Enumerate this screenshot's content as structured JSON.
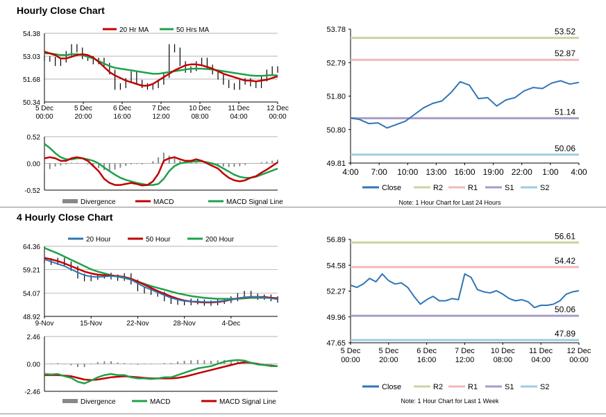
{
  "sections": {
    "hourly_title": "Hourly Close Chart",
    "four_hourly_title": "4 Hourly Close Chart"
  },
  "colors": {
    "red": "#C00000",
    "green": "#1FA04A",
    "blue": "#2E75B6",
    "bar": "#888888",
    "r2": "#C8D6A0",
    "r1": "#F2B7B7",
    "s1": "#A99BC9",
    "s2": "#9CCDE0",
    "close": "#2F75B5"
  },
  "chart_data": [
    {
      "id": "hourly_price",
      "type": "candlestick+line",
      "legend": [
        "20 Hr MA",
        "50 Hrs MA"
      ],
      "yticks": [
        "54.38",
        "53.03",
        "51.68",
        "50.34"
      ],
      "ylim": [
        50.34,
        54.38
      ],
      "xticks": [
        "5 Dec\n00:00",
        "5 Dec\n20:00",
        "6 Dec\n16:00",
        "7 Dec\n12:00",
        "10 Dec\n08:00",
        "11 Dec\n04:00",
        "12 Dec\n00:00"
      ],
      "close": [
        52.9,
        52.85,
        52.6,
        52.8,
        53.2,
        53.6,
        53.4,
        53.0,
        52.9,
        52.7,
        52.8,
        52.5,
        52.1,
        51.2,
        51.3,
        51.6,
        52.0,
        51.5,
        51.3,
        51.2,
        51.3,
        51.5,
        51.9,
        53.6,
        53.4,
        52.6,
        52.2,
        52.3,
        52.6,
        52.8,
        52.4,
        52.1,
        51.8,
        51.5,
        51.3,
        51.2,
        51.5,
        51.6,
        51.4,
        51.3,
        51.7,
        52.1,
        52.3,
        52.2
      ],
      "ma20": [
        53.3,
        53.2,
        53.1,
        52.9,
        52.9,
        53.0,
        53.1,
        53.15,
        53.1,
        52.95,
        52.7,
        52.4,
        52.1,
        51.9,
        51.75,
        51.6,
        51.5,
        51.4,
        51.3,
        51.3,
        51.4,
        51.6,
        51.8,
        52.0,
        52.2,
        52.35,
        52.5,
        52.55,
        52.55,
        52.5,
        52.4,
        52.3,
        52.15,
        52.0,
        51.9,
        51.8,
        51.7,
        51.6,
        51.6,
        51.55,
        51.6,
        51.65,
        51.75,
        51.85
      ],
      "ma50": [
        53.2,
        53.2,
        53.15,
        53.1,
        53.1,
        53.15,
        53.15,
        53.1,
        53.0,
        52.9,
        52.75,
        52.6,
        52.45,
        52.35,
        52.3,
        52.25,
        52.2,
        52.15,
        52.1,
        52.05,
        52.0,
        52.0,
        52.05,
        52.1,
        52.15,
        52.2,
        52.25,
        52.3,
        52.3,
        52.3,
        52.28,
        52.25,
        52.2,
        52.15,
        52.1,
        52.05,
        52.0,
        51.95,
        51.9,
        51.88,
        51.88,
        51.9,
        51.92,
        51.9
      ]
    },
    {
      "id": "hourly_macd",
      "type": "bar+line",
      "legend": [
        "Divergence",
        "MACD",
        "MACD Signal Line"
      ],
      "yticks": [
        "0.52",
        "0.00",
        "-0.52"
      ],
      "ylim": [
        -0.52,
        0.52
      ],
      "macd": [
        0.1,
        0.12,
        0.1,
        0.05,
        0.05,
        0.1,
        0.12,
        0.1,
        0.05,
        -0.05,
        -0.15,
        -0.3,
        -0.38,
        -0.42,
        -0.42,
        -0.4,
        -0.38,
        -0.4,
        -0.43,
        -0.42,
        -0.35,
        -0.2,
        0.05,
        0.1,
        0.12,
        0.08,
        0.05,
        0.05,
        0.08,
        0.05,
        0.0,
        -0.05,
        -0.1,
        -0.2,
        -0.28,
        -0.33,
        -0.35,
        -0.33,
        -0.28,
        -0.25,
        -0.18,
        -0.12,
        -0.05,
        0.02
      ],
      "signal": [
        0.38,
        0.3,
        0.2,
        0.12,
        0.08,
        0.08,
        0.1,
        0.1,
        0.08,
        0.05,
        -0.0,
        -0.08,
        -0.15,
        -0.22,
        -0.28,
        -0.32,
        -0.35,
        -0.38,
        -0.4,
        -0.42,
        -0.42,
        -0.4,
        -0.3,
        -0.15,
        -0.05,
        0.0,
        0.02,
        0.03,
        0.04,
        0.04,
        0.02,
        -0.0,
        -0.04,
        -0.1,
        -0.16,
        -0.22,
        -0.26,
        -0.28,
        -0.28,
        -0.26,
        -0.22,
        -0.18,
        -0.14,
        -0.1
      ]
    },
    {
      "id": "hourly_pivots",
      "type": "line",
      "yticks": [
        "53.78",
        "52.79",
        "51.80",
        "50.80",
        "49.81"
      ],
      "ylim": [
        49.81,
        53.78
      ],
      "xticks": [
        "4:00",
        "7:00",
        "10:00",
        "13:00",
        "16:00",
        "19:00",
        "22:00",
        "1:00",
        "4:00"
      ],
      "levels": [
        {
          "name": "R2",
          "value": 53.52,
          "label": "53.52"
        },
        {
          "name": "R1",
          "value": 52.87,
          "label": "52.87"
        },
        {
          "name": "S1",
          "value": 51.14,
          "label": "51.14"
        },
        {
          "name": "S2",
          "value": 50.06,
          "label": "50.06"
        }
      ],
      "close": [
        51.15,
        51.1,
        50.98,
        51.0,
        50.85,
        50.95,
        51.05,
        51.25,
        51.45,
        51.58,
        51.65,
        51.9,
        52.22,
        52.12,
        51.72,
        51.75,
        51.5,
        51.68,
        51.75,
        51.95,
        52.05,
        52.02,
        52.18,
        52.25,
        52.15,
        52.2
      ],
      "legend": [
        "Close",
        "R2",
        "R1",
        "S1",
        "S2"
      ],
      "note": "Note: 1 Hour Chart for Last 24 Hours"
    },
    {
      "id": "four_hourly_price",
      "type": "candlestick+line",
      "legend": [
        "20 Hour",
        "50 Hour",
        "200 Hour"
      ],
      "yticks": [
        "64.36",
        "59.21",
        "54.07",
        "48.92"
      ],
      "ylim": [
        48.92,
        64.36
      ],
      "xticks": [
        "9-Nov",
        "15-Nov",
        "22-Nov",
        "28-Nov",
        "4-Dec"
      ],
      "close": [
        61.2,
        60.8,
        61.3,
        60.5,
        59.5,
        57.8,
        57.2,
        57.5,
        57.8,
        58.0,
        57.6,
        57.3,
        57.9,
        56.5,
        55.0,
        54.5,
        54.2,
        53.8,
        52.8,
        52.2,
        52.0,
        51.9,
        52.3,
        52.1,
        51.8,
        51.9,
        52.2,
        52.4,
        52.8,
        53.5,
        54.0,
        53.4,
        53.1,
        53.2,
        52.8,
        52.5
      ],
      "ma20": [
        61.5,
        61.0,
        60.5,
        60.0,
        59.3,
        58.6,
        58.0,
        57.7,
        57.6,
        57.7,
        57.8,
        57.7,
        57.5,
        57.0,
        56.2,
        55.4,
        54.8,
        54.2,
        53.6,
        53.0,
        52.6,
        52.3,
        52.2,
        52.2,
        52.1,
        52.1,
        52.2,
        52.4,
        52.6,
        52.9,
        53.1,
        53.2,
        53.2,
        53.1,
        52.9,
        52.7
      ],
      "ma50": [
        61.8,
        61.5,
        61.1,
        60.6,
        60.0,
        59.4,
        58.8,
        58.4,
        58.1,
        58.0,
        57.9,
        57.8,
        57.6,
        57.2,
        56.6,
        55.9,
        55.2,
        54.5,
        53.9,
        53.3,
        52.8,
        52.4,
        52.2,
        52.1,
        52.0,
        52.0,
        52.1,
        52.3,
        52.6,
        52.9,
        53.1,
        53.2,
        53.2,
        53.2,
        53.0,
        52.9
      ],
      "ma200": [
        64.0,
        63.4,
        62.8,
        62.1,
        61.4,
        60.7,
        60.0,
        59.3,
        58.8,
        58.4,
        58.0,
        57.7,
        57.4,
        57.0,
        56.6,
        56.1,
        55.6,
        55.2,
        54.8,
        54.4,
        54.0,
        53.7,
        53.4,
        53.2,
        53.0,
        52.9,
        52.8,
        52.8,
        52.8,
        52.8,
        52.9,
        53.0,
        53.0,
        53.0,
        53.0,
        52.9
      ]
    },
    {
      "id": "four_hourly_macd",
      "type": "bar+line",
      "legend": [
        "Divergence",
        "MACD",
        "MACD Signal Line"
      ],
      "yticks": [
        "2.46",
        "0.00",
        "-2.46"
      ],
      "ylim": [
        -2.46,
        2.46
      ],
      "macd": [
        -0.9,
        -0.95,
        -0.9,
        -1.1,
        -1.25,
        -1.6,
        -1.75,
        -1.5,
        -1.2,
        -1.0,
        -0.9,
        -1.0,
        -1.0,
        -1.2,
        -1.3,
        -1.3,
        -1.35,
        -1.3,
        -1.2,
        -1.2,
        -1.0,
        -0.8,
        -0.6,
        -0.4,
        -0.3,
        -0.2,
        0.0,
        0.2,
        0.3,
        0.35,
        0.3,
        0.1,
        -0.05,
        -0.1,
        -0.2,
        -0.2
      ],
      "signal": [
        -1.0,
        -1.0,
        -1.0,
        -1.05,
        -1.1,
        -1.25,
        -1.4,
        -1.45,
        -1.4,
        -1.3,
        -1.2,
        -1.15,
        -1.1,
        -1.15,
        -1.2,
        -1.25,
        -1.3,
        -1.3,
        -1.3,
        -1.3,
        -1.25,
        -1.15,
        -1.0,
        -0.85,
        -0.7,
        -0.55,
        -0.4,
        -0.25,
        -0.1,
        0.05,
        0.15,
        0.1,
        0.0,
        -0.1,
        -0.15,
        -0.2
      ]
    },
    {
      "id": "weekly_pivots",
      "type": "line",
      "yticks": [
        "56.89",
        "54.58",
        "52.27",
        "49.96",
        "47.65"
      ],
      "ylim": [
        47.65,
        56.89
      ],
      "xticks": [
        "5 Dec\n00:00",
        "5 Dec\n20:00",
        "6 Dec\n16:00",
        "7 Dec\n12:00",
        "10 Dec\n08:00",
        "11 Dec\n04:00",
        "12 Dec\n00:00"
      ],
      "levels": [
        {
          "name": "R2",
          "value": 56.61,
          "label": "56.61"
        },
        {
          "name": "R1",
          "value": 54.42,
          "label": "54.42"
        },
        {
          "name": "S1",
          "value": 50.06,
          "label": "50.06"
        },
        {
          "name": "S2",
          "value": 47.89,
          "label": "47.89"
        }
      ],
      "close": [
        52.8,
        52.6,
        52.9,
        53.4,
        53.1,
        53.8,
        53.2,
        52.9,
        53.0,
        52.6,
        51.8,
        51.1,
        51.5,
        51.8,
        51.4,
        51.4,
        51.6,
        51.5,
        53.8,
        53.5,
        52.4,
        52.2,
        52.1,
        52.3,
        52.0,
        51.6,
        51.4,
        51.5,
        51.3,
        50.8,
        51.0,
        51.0,
        51.1,
        51.4,
        52.0,
        52.2,
        52.3
      ],
      "legend": [
        "Close",
        "R2",
        "R1",
        "S1",
        "S2"
      ],
      "note": "Note: 1 Hour Chart for Last 1 Week"
    }
  ]
}
